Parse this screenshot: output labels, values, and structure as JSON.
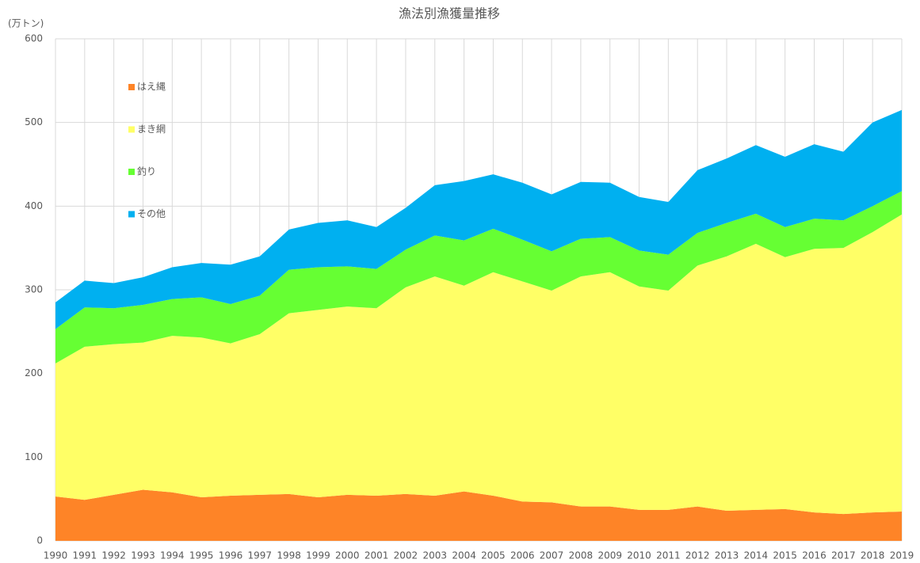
{
  "chart_data": {
    "type": "stacked-area",
    "title": "漁法別漁獲量推移",
    "y_label": "(万トン)",
    "x": [
      1990,
      1991,
      1992,
      1993,
      1994,
      1995,
      1996,
      1997,
      1998,
      1999,
      2000,
      2001,
      2002,
      2003,
      2004,
      2005,
      2006,
      2007,
      2008,
      2009,
      2010,
      2011,
      2012,
      2013,
      2014,
      2015,
      2016,
      2017,
      2018,
      2019
    ],
    "xlim": [
      1990,
      2019
    ],
    "ylim": [
      0,
      600
    ],
    "yticks": [
      0,
      100,
      200,
      300,
      400,
      500,
      600
    ],
    "grid": true,
    "legend": "upper left",
    "series": [
      {
        "name": "はえ縄",
        "color": "#fe8427",
        "values": [
          53,
          49,
          55,
          61,
          58,
          52,
          54,
          55,
          56,
          52,
          55,
          54,
          56,
          54,
          59,
          54,
          47,
          46,
          41,
          41,
          37,
          37,
          41,
          36,
          37,
          38,
          34,
          32,
          34,
          35
        ]
      },
      {
        "name": "まき網",
        "color": "#ffff66",
        "values": [
          159,
          183,
          180,
          176,
          187,
          191,
          182,
          192,
          216,
          224,
          225,
          224,
          247,
          262,
          246,
          267,
          263,
          253,
          275,
          280,
          267,
          262,
          288,
          304,
          318,
          301,
          315,
          318,
          335,
          355
        ]
      },
      {
        "name": "釣り",
        "color": "#66ff33",
        "values": [
          41,
          47,
          43,
          45,
          44,
          48,
          47,
          46,
          52,
          51,
          48,
          47,
          45,
          49,
          54,
          52,
          50,
          47,
          45,
          42,
          43,
          43,
          39,
          40,
          36,
          36,
          36,
          33,
          31,
          28
        ]
      },
      {
        "name": "その他",
        "color": "#00b0f0",
        "values": [
          32,
          32,
          30,
          33,
          38,
          41,
          47,
          47,
          48,
          53,
          55,
          50,
          50,
          60,
          71,
          65,
          68,
          68,
          68,
          65,
          64,
          63,
          75,
          77,
          82,
          84,
          89,
          82,
          100,
          97
        ]
      }
    ]
  }
}
